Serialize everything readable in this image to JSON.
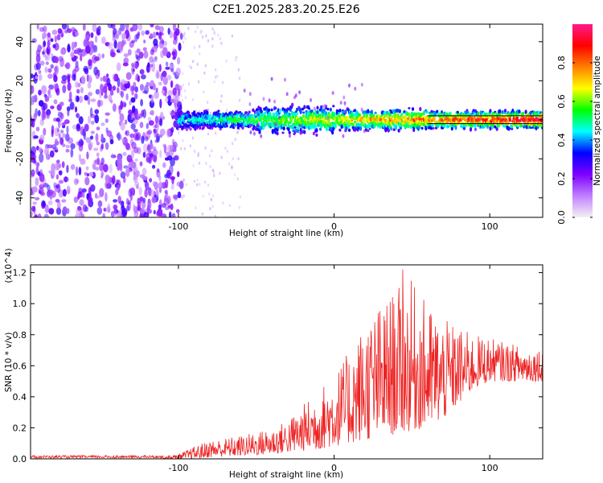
{
  "chart_data": [
    {
      "type": "heatmap",
      "name": "spectrogram",
      "title": "C2E1.2025.283.20.25.E26",
      "xlabel": "Height of straight line (km)",
      "ylabel": "Frequency (Hz)",
      "xlim": [
        -195,
        134
      ],
      "ylim": [
        -50,
        49
      ],
      "xticks": [
        -100,
        0,
        100
      ],
      "yticks": [
        -40,
        -20,
        0,
        20,
        40
      ],
      "xtick_labels": [
        "-100",
        "0",
        "100"
      ],
      "ytick_labels": [
        "-40",
        "-20",
        "0",
        "20",
        "40"
      ],
      "colorbar": {
        "label": "Normalized spectral amplitude",
        "range": [
          0,
          1
        ],
        "ticks": [
          0.0,
          0.2,
          0.4,
          0.6,
          0.8
        ],
        "tick_labels": [
          "0.0",
          "0.2",
          "0.4",
          "0.6",
          "0.8"
        ],
        "colors": [
          "#f2f2f2",
          "#c080ff",
          "#7f00ff",
          "#0000ff",
          "#00ffff",
          "#00ff00",
          "#ffff00",
          "#ff7f00",
          "#ff0000",
          "#ff1a8c"
        ]
      },
      "noise_region_x": [
        -195,
        -100
      ],
      "signal_band_center_hz": 0,
      "signal_band_halfwidth_hz": 3
    },
    {
      "type": "line",
      "name": "snr",
      "xlabel": "Height of straight line (km)",
      "ylabel": "SNR (10 * v/v)",
      "exponent_label": "(x10^4)",
      "xlim": [
        -195,
        134
      ],
      "ylim": [
        0,
        1.25
      ],
      "xticks": [
        -100,
        0,
        100
      ],
      "yticks": [
        0.0,
        0.2,
        0.4,
        0.6,
        0.8,
        1.0,
        1.2
      ],
      "xtick_labels": [
        "-100",
        "0",
        "100"
      ],
      "ytick_labels": [
        "0.0",
        "0.2",
        "0.4",
        "0.6",
        "0.8",
        "1.0",
        "1.2"
      ],
      "color": "#ee2222",
      "envelope": {
        "x": [
          -195,
          -110,
          -100,
          -90,
          -80,
          -60,
          -40,
          -30,
          -20,
          -10,
          0,
          10,
          20,
          30,
          40,
          50,
          60,
          70,
          80,
          90,
          100,
          110,
          120,
          130,
          134
        ],
        "lower": [
          0.0,
          0.0,
          0.0,
          0.0,
          0.01,
          0.02,
          0.03,
          0.04,
          0.05,
          0.06,
          0.08,
          0.1,
          0.12,
          0.14,
          0.16,
          0.18,
          0.2,
          0.25,
          0.35,
          0.45,
          0.5,
          0.5,
          0.5,
          0.5,
          0.5
        ],
        "upper": [
          0.02,
          0.02,
          0.03,
          0.08,
          0.12,
          0.15,
          0.2,
          0.25,
          0.35,
          0.45,
          0.55,
          0.7,
          0.9,
          1.0,
          1.1,
          1.15,
          1.0,
          0.9,
          0.85,
          0.8,
          0.78,
          0.75,
          0.73,
          0.72,
          0.72
        ]
      },
      "peak": {
        "x": 44,
        "y": 1.22
      }
    }
  ]
}
